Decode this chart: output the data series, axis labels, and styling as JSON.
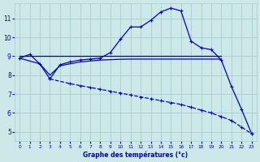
{
  "background_color": "#cce8e8",
  "grid_color": "#aacccc",
  "line_color": "#0000cc",
  "xlabel": "Graphe des températures (°c)",
  "xlim": [
    -0.5,
    23.5
  ],
  "ylim": [
    4.5,
    11.8
  ],
  "yticks": [
    5,
    6,
    7,
    8,
    9,
    10,
    11
  ],
  "xticks": [
    0,
    1,
    2,
    3,
    4,
    5,
    6,
    7,
    8,
    9,
    10,
    11,
    12,
    13,
    14,
    15,
    16,
    17,
    18,
    19,
    20,
    21,
    22,
    23
  ],
  "curve1_x": [
    0,
    1,
    2,
    3,
    4,
    5,
    6,
    7,
    8,
    9,
    10,
    11,
    12,
    13,
    14,
    15,
    16,
    17,
    18,
    19,
    20,
    21,
    22,
    23
  ],
  "curve1_y": [
    8.9,
    9.1,
    8.6,
    7.8,
    8.55,
    8.7,
    8.8,
    8.85,
    8.9,
    9.2,
    9.9,
    10.55,
    10.55,
    10.9,
    11.35,
    11.55,
    11.4,
    9.8,
    9.45,
    9.35,
    8.8,
    7.4,
    6.2,
    4.9
  ],
  "curve2_x": [
    0,
    1,
    2,
    3,
    4,
    5,
    6,
    7,
    8,
    9,
    10,
    11,
    12,
    13,
    14,
    15,
    16,
    17,
    18,
    19,
    20
  ],
  "curve2_y": [
    9.0,
    9.0,
    9.0,
    9.0,
    9.0,
    9.0,
    9.0,
    9.0,
    9.0,
    9.0,
    9.0,
    9.0,
    9.0,
    9.0,
    9.0,
    9.0,
    9.0,
    9.0,
    9.0,
    9.0,
    9.0
  ],
  "curve3_x": [
    0,
    2,
    3,
    4,
    5,
    6,
    7,
    8,
    9,
    10,
    11,
    12,
    13,
    14,
    15,
    16,
    17,
    18,
    19,
    20
  ],
  "curve3_y": [
    8.9,
    8.6,
    8.0,
    8.5,
    8.6,
    8.7,
    8.75,
    8.8,
    8.82,
    8.84,
    8.85,
    8.85,
    8.85,
    8.85,
    8.85,
    8.85,
    8.85,
    8.85,
    8.85,
    8.85
  ],
  "curve4_x": [
    3,
    5,
    6,
    7,
    8,
    9,
    10,
    11,
    12,
    13,
    14,
    15,
    16,
    17,
    18,
    19,
    20,
    21,
    22,
    23
  ],
  "curve4_y": [
    7.8,
    7.55,
    7.45,
    7.35,
    7.25,
    7.15,
    7.05,
    6.95,
    6.85,
    6.75,
    6.65,
    6.55,
    6.45,
    6.3,
    6.15,
    6.0,
    5.8,
    5.6,
    5.25,
    4.9
  ]
}
